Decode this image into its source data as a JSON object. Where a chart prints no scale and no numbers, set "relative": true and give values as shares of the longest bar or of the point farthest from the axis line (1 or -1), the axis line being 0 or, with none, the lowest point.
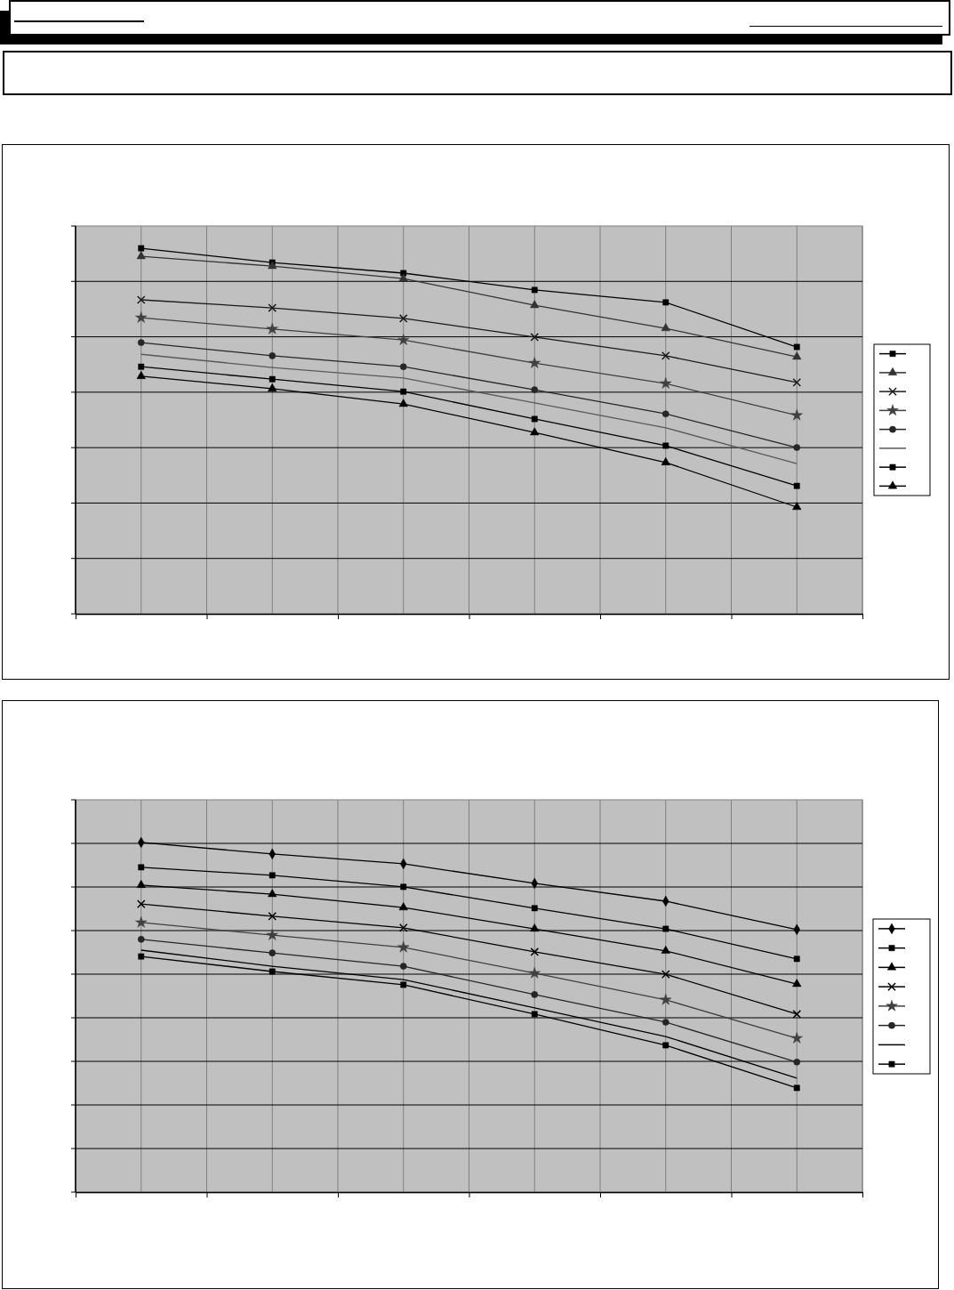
{
  "chart_data": [
    {
      "type": "line",
      "relative": true,
      "grid": true,
      "categories": [
        null,
        null,
        null,
        null,
        null,
        null
      ],
      "series": [
        {
          "color": "#000000",
          "marker": "square",
          "values": [
            1,
            0.961,
            0.932,
            0.886,
            0.852,
            0.73
          ]
        },
        {
          "color": "#333333",
          "marker": "triangle",
          "values": [
            0.978,
            0.951,
            0.917,
            0.844,
            0.781,
            0.703
          ]
        },
        {
          "color": "#1a1a1a",
          "marker": "cross",
          "values": [
            0.859,
            0.837,
            0.808,
            0.757,
            0.706,
            0.633
          ]
        },
        {
          "color": "#404040",
          "marker": "star",
          "values": [
            0.81,
            0.779,
            0.749,
            0.686,
            0.63,
            0.543
          ]
        },
        {
          "color": "#262626",
          "marker": "circle",
          "values": [
            0.742,
            0.706,
            0.676,
            0.613,
            0.547,
            0.455
          ]
        },
        {
          "color": "#595959",
          "marker": "none",
          "values": [
            0.71,
            0.674,
            0.645,
            0.577,
            0.509,
            0.411
          ]
        },
        {
          "color": "#000000",
          "marker": "square",
          "values": [
            0.676,
            0.642,
            0.608,
            0.533,
            0.46,
            0.35
          ]
        },
        {
          "color": "#000000",
          "marker": "triangle",
          "values": [
            0.65,
            0.616,
            0.574,
            0.496,
            0.414,
            0.292
          ]
        }
      ]
    },
    {
      "type": "line",
      "relative": true,
      "grid": true,
      "categories": [
        null,
        null,
        null,
        null,
        null,
        null
      ],
      "series": [
        {
          "color": "#000000",
          "marker": "diamond",
          "values": [
            1,
            0.967,
            0.939,
            0.883,
            0.832,
            0.751
          ]
        },
        {
          "color": "#000000",
          "marker": "square",
          "values": [
            0.929,
            0.906,
            0.873,
            0.812,
            0.753,
            0.667
          ]
        },
        {
          "color": "#000000",
          "marker": "triangle",
          "values": [
            0.878,
            0.852,
            0.814,
            0.753,
            0.69,
            0.595
          ]
        },
        {
          "color": "#000000",
          "marker": "cross",
          "values": [
            0.824,
            0.789,
            0.756,
            0.687,
            0.623,
            0.509
          ]
        },
        {
          "color": "#404040",
          "marker": "star",
          "values": [
            0.771,
            0.735,
            0.7,
            0.626,
            0.55,
            0.44
          ]
        },
        {
          "color": "#262626",
          "marker": "circle",
          "values": [
            0.723,
            0.684,
            0.646,
            0.565,
            0.486,
            0.372
          ]
        },
        {
          "color": "#000000",
          "marker": "none",
          "values": [
            0.692,
            0.646,
            0.608,
            0.527,
            0.445,
            0.326
          ]
        },
        {
          "color": "#000000",
          "marker": "square",
          "values": [
            0.674,
            0.631,
            0.593,
            0.509,
            0.42,
            0.298
          ]
        }
      ]
    }
  ]
}
